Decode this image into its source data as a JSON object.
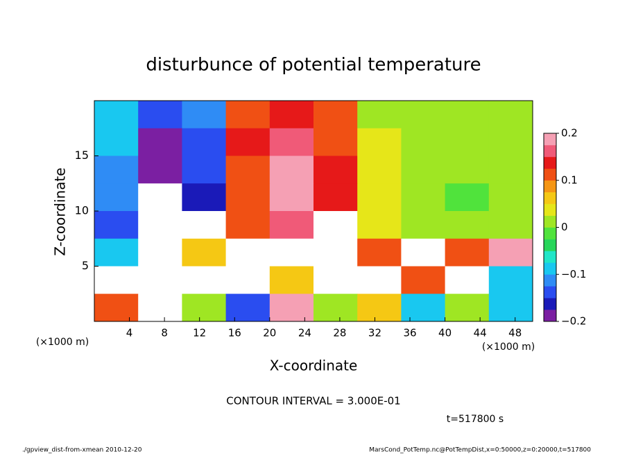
{
  "chart_data": {
    "type": "heatmap",
    "title": "disturbunce of potential temperature",
    "x_label": "X-coordinate",
    "y_label": "Z-coordinate",
    "x_unit": "(×1000 m)",
    "y_unit": "(×1000 m)",
    "annotation": "CONTOUR INTERVAL = 3.000E-01",
    "time_label": "t=517800 s",
    "footer_left": "./gpview_dist-from-xmean  2010-12-20",
    "footer_right": "MarsCond_PotTemp.nc@PotTempDist,x=0:50000,z=0:20000,t=517800",
    "x": [
      2.5,
      7.5,
      12.5,
      17.5,
      22.5,
      27.5,
      32.5,
      37.5,
      42.5,
      47.5
    ],
    "y": [
      18.75,
      16.25,
      13.75,
      11.25,
      8.75,
      6.25,
      3.75,
      1.25
    ],
    "values": [
      [
        -0.08,
        -0.15,
        -0.12,
        0.12,
        0.15,
        0.1,
        0.02,
        0.0,
        0.02,
        0.02
      ],
      [
        -0.1,
        -0.18,
        -0.14,
        0.13,
        0.17,
        0.12,
        0.03,
        0.0,
        0.01,
        0.02
      ],
      [
        -0.12,
        -0.2,
        -0.15,
        0.12,
        0.19,
        0.13,
        0.04,
        0.01,
        0.0,
        0.02
      ],
      [
        -0.12,
        -0.22,
        -0.16,
        0.1,
        0.18,
        0.15,
        0.03,
        0.0,
        -0.01,
        0.0
      ],
      [
        -0.15,
        -0.3,
        -0.25,
        0.1,
        0.16,
        0.22,
        0.03,
        0.01,
        0.0,
        0.0
      ],
      [
        -0.1,
        -0.3,
        0.05,
        -0.3,
        -0.4,
        -0.3,
        0.1,
        0.25,
        0.1,
        0.2
      ],
      [
        -0.3,
        -0.4,
        0.25,
        -0.3,
        0.05,
        0.3,
        0.3,
        0.1,
        0.3,
        -0.1
      ],
      [
        0.1,
        -0.3,
        0.0,
        -0.15,
        0.2,
        0.0,
        0.05,
        -0.1,
        0.0,
        -0.1
      ]
    ],
    "xlim": [
      0,
      50
    ],
    "ylim": [
      0,
      20
    ],
    "xticks": [
      4,
      8,
      12,
      16,
      20,
      24,
      28,
      32,
      36,
      40,
      44,
      48
    ],
    "yticks": [
      5,
      10,
      15
    ],
    "zlim": [
      -0.2,
      0.2
    ],
    "zticks": [
      {
        "value": -0.2,
        "label": "−0.2"
      },
      {
        "value": -0.1,
        "label": "−0.1"
      },
      0,
      0.1,
      0.2
    ],
    "colormap": [
      "#7b1fa2",
      "#1a1ab8",
      "#2a4df0",
      "#2f8cf5",
      "#19c8f0",
      "#20e6c8",
      "#27d65a",
      "#50e33c",
      "#9fe623",
      "#e6e619",
      "#f5c814",
      "#f59614",
      "#f05014",
      "#e61919",
      "#f05a78",
      "#f5a0b4"
    ],
    "out_of_range_color": "#ffffff"
  }
}
